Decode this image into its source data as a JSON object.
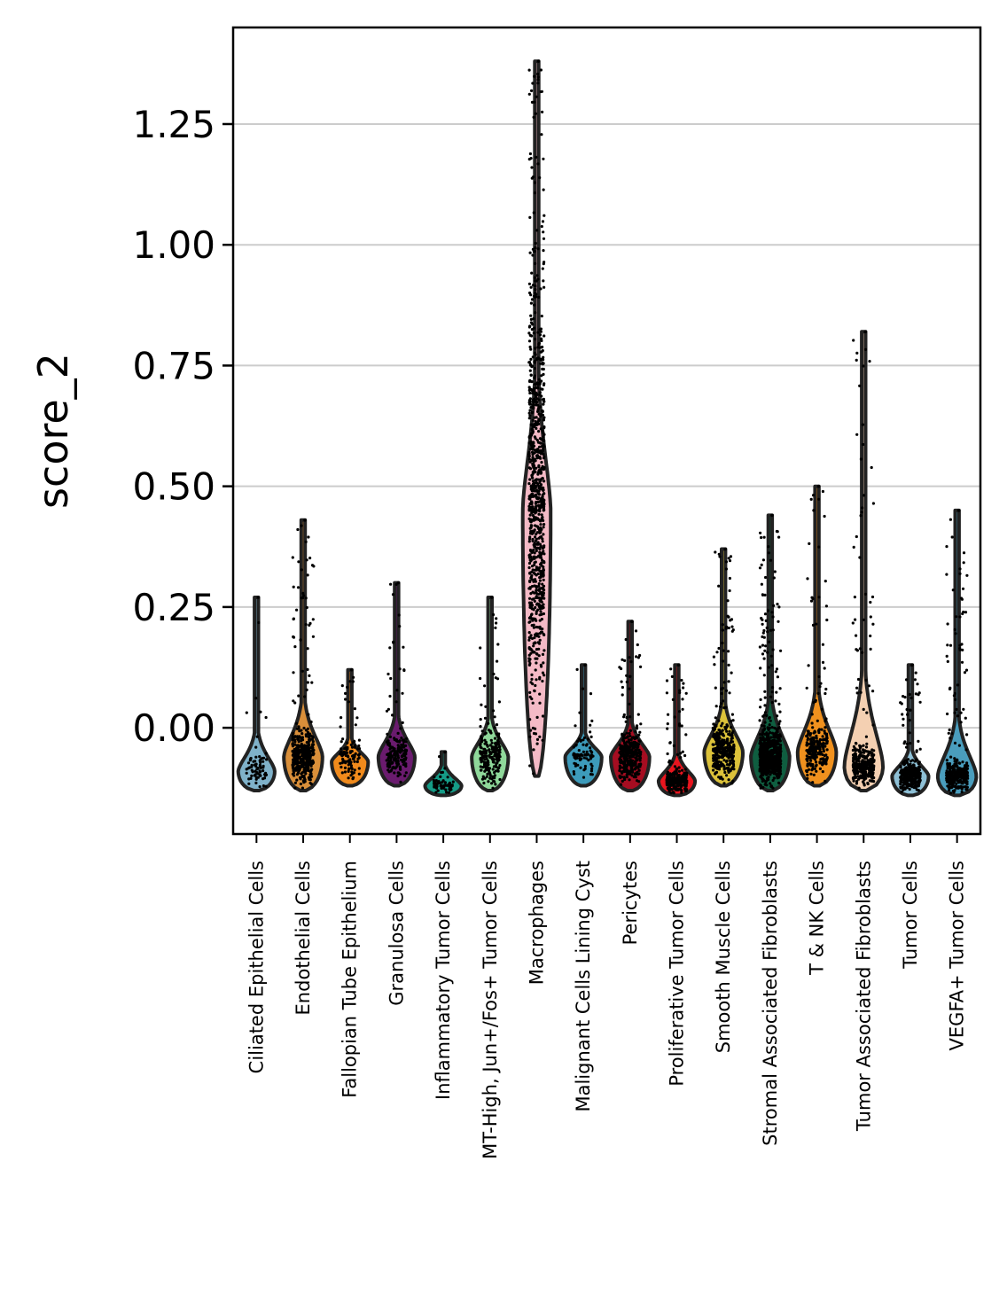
{
  "chart_data": {
    "type": "violin",
    "ylabel": "score_2",
    "xlabel": "",
    "ylim": [
      -0.22,
      1.45
    ],
    "yticks": [
      0.0,
      0.25,
      0.5,
      0.75,
      1.0,
      1.25
    ],
    "ytick_labels": [
      "0.00",
      "0.25",
      "0.50",
      "0.75",
      "1.00",
      "1.25"
    ],
    "grid": "horizontal",
    "legend": "none",
    "categories": [
      {
        "name": "Ciliated Epithelial Cells",
        "color": "#7fb1c9",
        "min": -0.13,
        "max": 0.27,
        "mode": -0.09,
        "n": 70,
        "widthScale": 0.85
      },
      {
        "name": "Endothelial Cells",
        "color": "#d98f3a",
        "min": -0.13,
        "max": 0.43,
        "mode": -0.06,
        "n": 420,
        "widthScale": 0.9
      },
      {
        "name": "Fallopian Tube Epithelium",
        "color": "#f08a1c",
        "min": -0.12,
        "max": 0.12,
        "mode": -0.07,
        "n": 110,
        "widthScale": 0.85
      },
      {
        "name": "Granulosa Cells",
        "color": "#6a1b6e",
        "min": -0.12,
        "max": 0.3,
        "mode": -0.06,
        "n": 180,
        "widthScale": 0.85
      },
      {
        "name": "Inflammatory Tumor Cells",
        "color": "#159b86",
        "min": -0.14,
        "max": -0.05,
        "mode": -0.12,
        "n": 60,
        "widthScale": 0.85
      },
      {
        "name": "MT-High, Jun+/Fos+ Tumor Cells",
        "color": "#8fd89a",
        "min": -0.13,
        "max": 0.27,
        "mode": -0.06,
        "n": 230,
        "widthScale": 0.85
      },
      {
        "name": "Macrophages",
        "color": "#f4bac6",
        "min": -0.1,
        "max": 1.38,
        "mode": 0.45,
        "n": 950,
        "widthScale": 0.65
      },
      {
        "name": "Malignant Cells Lining Cyst",
        "color": "#3d9bbb",
        "min": -0.12,
        "max": 0.13,
        "mode": -0.06,
        "n": 80,
        "widthScale": 0.85
      },
      {
        "name": "Pericytes",
        "color": "#a60d21",
        "min": -0.13,
        "max": 0.22,
        "mode": -0.06,
        "n": 330,
        "widthScale": 0.9
      },
      {
        "name": "Proliferative Tumor Cells",
        "color": "#e8151e",
        "min": -0.14,
        "max": 0.13,
        "mode": -0.11,
        "n": 260,
        "widthScale": 0.85
      },
      {
        "name": "Smooth Muscle Cells",
        "color": "#dcc23a",
        "min": -0.12,
        "max": 0.37,
        "mode": -0.05,
        "n": 380,
        "widthScale": 0.9
      },
      {
        "name": "Stromal Associated Fibroblasts",
        "color": "#0f5e40",
        "min": -0.13,
        "max": 0.44,
        "mode": -0.06,
        "n": 750,
        "widthScale": 0.9
      },
      {
        "name": "T & NK Cells",
        "color": "#f0911e",
        "min": -0.12,
        "max": 0.5,
        "mode": -0.05,
        "n": 250,
        "widthScale": 0.9
      },
      {
        "name": "Tumor Associated Fibroblasts",
        "color": "#f4d0b2",
        "min": -0.13,
        "max": 0.82,
        "mode": -0.08,
        "n": 330,
        "widthScale": 0.9
      },
      {
        "name": "Tumor Cells",
        "color": "#8ec0d6",
        "min": -0.14,
        "max": 0.13,
        "mode": -0.1,
        "n": 330,
        "widthScale": 0.85
      },
      {
        "name": "VEGFA+ Tumor Cells",
        "color": "#4a9dbd",
        "min": -0.14,
        "max": 0.45,
        "mode": -0.1,
        "n": 330,
        "widthScale": 0.9
      }
    ]
  }
}
